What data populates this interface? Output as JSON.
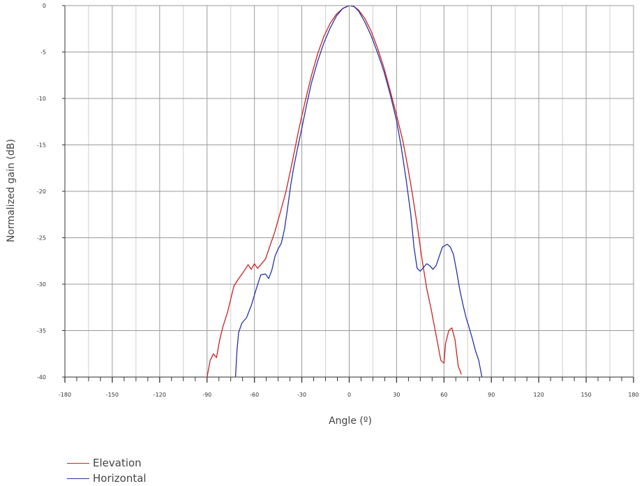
{
  "chart_data": {
    "type": "line",
    "title": "",
    "xlabel": "Angle (º)",
    "ylabel": "Normalized gain (dB)",
    "xlim": [
      -180,
      180
    ],
    "ylim": [
      -40,
      0
    ],
    "x_ticks": [
      -180,
      -150,
      -120,
      -90,
      -60,
      -30,
      0,
      30,
      60,
      90,
      120,
      150,
      180
    ],
    "y_ticks": [
      0,
      -5,
      -10,
      -15,
      -20,
      -25,
      -30,
      -35,
      -40
    ],
    "grid": true,
    "legend_position": "bottom-left",
    "series": [
      {
        "name": "Elevation",
        "color": "#cc2222",
        "points": [
          [
            -90,
            -40
          ],
          [
            -88,
            -38.2
          ],
          [
            -86,
            -37.5
          ],
          [
            -84,
            -37.9
          ],
          [
            -82,
            -36
          ],
          [
            -80,
            -34.6
          ],
          [
            -77,
            -33
          ],
          [
            -75,
            -31.6
          ],
          [
            -73,
            -30.2
          ],
          [
            -70,
            -29.4
          ],
          [
            -67,
            -28.7
          ],
          [
            -64,
            -27.9
          ],
          [
            -62,
            -28.4
          ],
          [
            -60,
            -27.8
          ],
          [
            -58,
            -28.3
          ],
          [
            -56,
            -27.9
          ],
          [
            -53,
            -27.3
          ],
          [
            -50,
            -25.8
          ],
          [
            -47,
            -24.3
          ],
          [
            -44,
            -22.5
          ],
          [
            -40,
            -20
          ],
          [
            -36,
            -16.8
          ],
          [
            -32,
            -13.4
          ],
          [
            -28,
            -10.4
          ],
          [
            -24,
            -7.6
          ],
          [
            -20,
            -5.2
          ],
          [
            -16,
            -3.3
          ],
          [
            -12,
            -1.9
          ],
          [
            -8,
            -0.9
          ],
          [
            -4,
            -0.3
          ],
          [
            0,
            0
          ],
          [
            3,
            -0.1
          ],
          [
            6,
            -0.5
          ],
          [
            10,
            -1.4
          ],
          [
            14,
            -2.8
          ],
          [
            18,
            -4.6
          ],
          [
            22,
            -6.7
          ],
          [
            26,
            -9.2
          ],
          [
            30,
            -11.8
          ],
          [
            34,
            -14.6
          ],
          [
            37,
            -17.3
          ],
          [
            40,
            -20.3
          ],
          [
            43,
            -23.6
          ],
          [
            46,
            -27.2
          ],
          [
            49,
            -30.4
          ],
          [
            52,
            -32.8
          ],
          [
            55,
            -35.5
          ],
          [
            58,
            -38.2
          ],
          [
            60,
            -38.5
          ],
          [
            61,
            -36.4
          ],
          [
            63,
            -35
          ],
          [
            65,
            -34.7
          ],
          [
            67,
            -36
          ],
          [
            69,
            -38.8
          ],
          [
            71,
            -39.7
          ]
        ]
      },
      {
        "name": "Horizontal",
        "color": "#2233aa",
        "points": [
          [
            -72,
            -40
          ],
          [
            -71,
            -37
          ],
          [
            -70,
            -35.2
          ],
          [
            -68,
            -34.2
          ],
          [
            -65,
            -33.6
          ],
          [
            -62,
            -32.3
          ],
          [
            -59,
            -30.6
          ],
          [
            -56,
            -29
          ],
          [
            -53,
            -28.9
          ],
          [
            -51,
            -29.4
          ],
          [
            -49,
            -28.5
          ],
          [
            -47,
            -27
          ],
          [
            -45,
            -26.2
          ],
          [
            -43,
            -25.6
          ],
          [
            -41,
            -24.1
          ],
          [
            -39,
            -21.8
          ],
          [
            -37,
            -19.3
          ],
          [
            -35,
            -17.3
          ],
          [
            -33,
            -15.6
          ],
          [
            -30,
            -13.2
          ],
          [
            -27,
            -10.7
          ],
          [
            -24,
            -8.4
          ],
          [
            -20,
            -6
          ],
          [
            -16,
            -4
          ],
          [
            -12,
            -2.4
          ],
          [
            -8,
            -1.1
          ],
          [
            -4,
            -0.3
          ],
          [
            0,
            0
          ],
          [
            3,
            -0.1
          ],
          [
            6,
            -0.6
          ],
          [
            10,
            -1.8
          ],
          [
            14,
            -3.3
          ],
          [
            18,
            -5.1
          ],
          [
            22,
            -7.1
          ],
          [
            26,
            -9.6
          ],
          [
            30,
            -12.4
          ],
          [
            33,
            -15.3
          ],
          [
            36,
            -18.7
          ],
          [
            39,
            -22.5
          ],
          [
            41,
            -26
          ],
          [
            43,
            -28.3
          ],
          [
            45,
            -28.6
          ],
          [
            47,
            -28.2
          ],
          [
            49,
            -27.8
          ],
          [
            51,
            -28
          ],
          [
            53,
            -28.4
          ],
          [
            55,
            -28
          ],
          [
            57,
            -27
          ],
          [
            59,
            -26
          ],
          [
            62,
            -25.7
          ],
          [
            64,
            -26
          ],
          [
            66,
            -26.8
          ],
          [
            68,
            -28.6
          ],
          [
            70,
            -30.6
          ],
          [
            72,
            -32.2
          ],
          [
            74,
            -33.6
          ],
          [
            76,
            -34.7
          ],
          [
            78,
            -35.9
          ],
          [
            80,
            -37.2
          ],
          [
            82,
            -38.2
          ],
          [
            84,
            -40
          ]
        ]
      }
    ]
  }
}
